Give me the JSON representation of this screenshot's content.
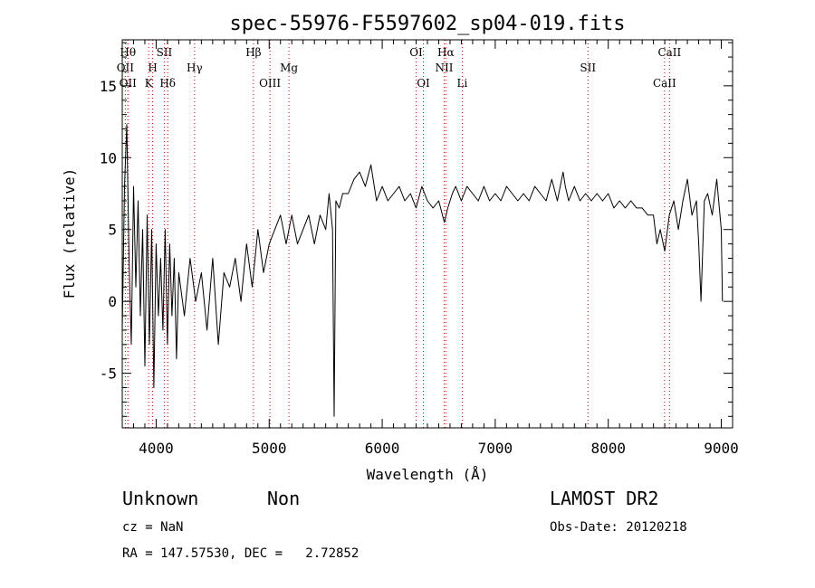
{
  "chart_data": {
    "type": "line",
    "title": "spec-55976-F5597602_sp04-019.fits",
    "xlabel": "Wavelength (Å)",
    "ylabel": "Flux (relative)",
    "xlim": [
      3700,
      9100
    ],
    "ylim": [
      -8.8,
      18.2
    ],
    "x_ticks": [
      4000,
      5000,
      6000,
      7000,
      8000,
      9000
    ],
    "y_ticks": [
      -5,
      0,
      5,
      10,
      15
    ],
    "grid": false,
    "series": [
      {
        "x": [
          3700,
          3720,
          3740,
          3760,
          3780,
          3800,
          3820,
          3840,
          3860,
          3880,
          3900,
          3920,
          3940,
          3960,
          3980,
          4000,
          4020,
          4040,
          4060,
          4080,
          4100,
          4120,
          4140,
          4160,
          4180,
          4200,
          4250,
          4300,
          4350,
          4400,
          4450,
          4500,
          4550,
          4600,
          4650,
          4700,
          4750,
          4800,
          4850,
          4900,
          4950,
          5000,
          5050,
          5100,
          5150,
          5200,
          5250,
          5300,
          5350,
          5400,
          5450,
          5500,
          5530,
          5560,
          5575,
          5590,
          5620,
          5650,
          5700,
          5750,
          5800,
          5850,
          5900,
          5950,
          6000,
          6050,
          6100,
          6150,
          6200,
          6250,
          6300,
          6350,
          6400,
          6450,
          6500,
          6550,
          6580,
          6620,
          6650,
          6700,
          6750,
          6800,
          6850,
          6900,
          6950,
          7000,
          7050,
          7100,
          7150,
          7200,
          7250,
          7300,
          7350,
          7400,
          7450,
          7500,
          7550,
          7600,
          7620,
          7650,
          7700,
          7750,
          7800,
          7850,
          7900,
          7950,
          8000,
          8050,
          8100,
          8150,
          8200,
          8250,
          8300,
          8350,
          8400,
          8430,
          8460,
          8500,
          8540,
          8580,
          8620,
          8660,
          8700,
          8740,
          8780,
          8800,
          8820,
          8850,
          8880,
          8920,
          8960,
          9000,
          9010
        ],
        "values": [
          -2,
          8,
          12.3,
          3,
          -3,
          8,
          1,
          7,
          -1,
          5,
          -4.5,
          6,
          -3,
          5,
          -6,
          4,
          -1,
          3,
          -2,
          5,
          -3,
          4,
          -1,
          3,
          -4,
          2,
          -1,
          3,
          0,
          2,
          -2,
          3,
          -3,
          2,
          1,
          3,
          0,
          4,
          1,
          5,
          2,
          4,
          5,
          6,
          4,
          6,
          4,
          5,
          6,
          4,
          6,
          5,
          7.5,
          5,
          -8,
          7,
          6.5,
          7.5,
          7.5,
          8.5,
          9,
          8,
          9.5,
          7,
          8,
          7,
          7.5,
          8,
          7,
          7.5,
          6.5,
          8,
          7,
          6.5,
          7,
          5.5,
          6.5,
          7.5,
          8,
          7,
          8,
          7.5,
          7,
          8,
          7,
          7.5,
          7,
          8,
          7.5,
          7,
          7.5,
          7,
          8,
          7.5,
          7,
          8.5,
          7,
          9,
          8,
          7,
          8,
          7,
          7.5,
          7,
          7.5,
          7,
          7.5,
          6.5,
          7,
          6.5,
          7,
          6.5,
          6.5,
          6,
          6,
          4,
          5,
          3.5,
          6,
          7,
          5,
          7,
          8.5,
          6,
          7,
          4,
          0,
          7,
          7.5,
          6,
          8.5,
          5,
          0
        ]
      }
    ],
    "line_markers": [
      {
        "x": 3727,
        "label": "OII",
        "row": 2
      },
      {
        "x": 3750,
        "label": "Hθ",
        "row": 1
      },
      {
        "x": 3750,
        "label": "OII",
        "row": 3
      },
      {
        "x": 3934,
        "label": "K",
        "row": 3
      },
      {
        "x": 3969,
        "label": "H",
        "row": 2
      },
      {
        "x": 4072,
        "label": "SII",
        "row": 1
      },
      {
        "x": 4102,
        "label": "Hδ",
        "row": 3
      },
      {
        "x": 4340,
        "label": "Hγ",
        "row": 2
      },
      {
        "x": 4861,
        "label": "Hβ",
        "row": 1
      },
      {
        "x": 5007,
        "label": "OIII",
        "row": 3
      },
      {
        "x": 5175,
        "label": "Mg",
        "row": 2
      },
      {
        "x": 6300,
        "label": "OI",
        "row": 1
      },
      {
        "x": 6364,
        "label": "OI",
        "row": 3
      },
      {
        "x": 6563,
        "label": "Hα",
        "row": 1
      },
      {
        "x": 6548,
        "label": "NII",
        "row": 2
      },
      {
        "x": 6708,
        "label": "Li",
        "row": 3
      },
      {
        "x": 7820,
        "label": "SII",
        "row": 2
      },
      {
        "x": 8542,
        "label": "CaII",
        "row": 1
      },
      {
        "x": 8498,
        "label": "CaII",
        "row": 3
      }
    ]
  },
  "info": {
    "class": "Unknown",
    "subclass": "Non",
    "cz": "cz = NaN",
    "radec": "RA = 147.57530, DEC =   2.72852",
    "survey": "LAMOST DR2",
    "obs_date": "Obs-Date: 20120218"
  },
  "colors": {
    "axis": "#000000",
    "spectrum": "#000000",
    "marker_line": "#cc0000"
  }
}
